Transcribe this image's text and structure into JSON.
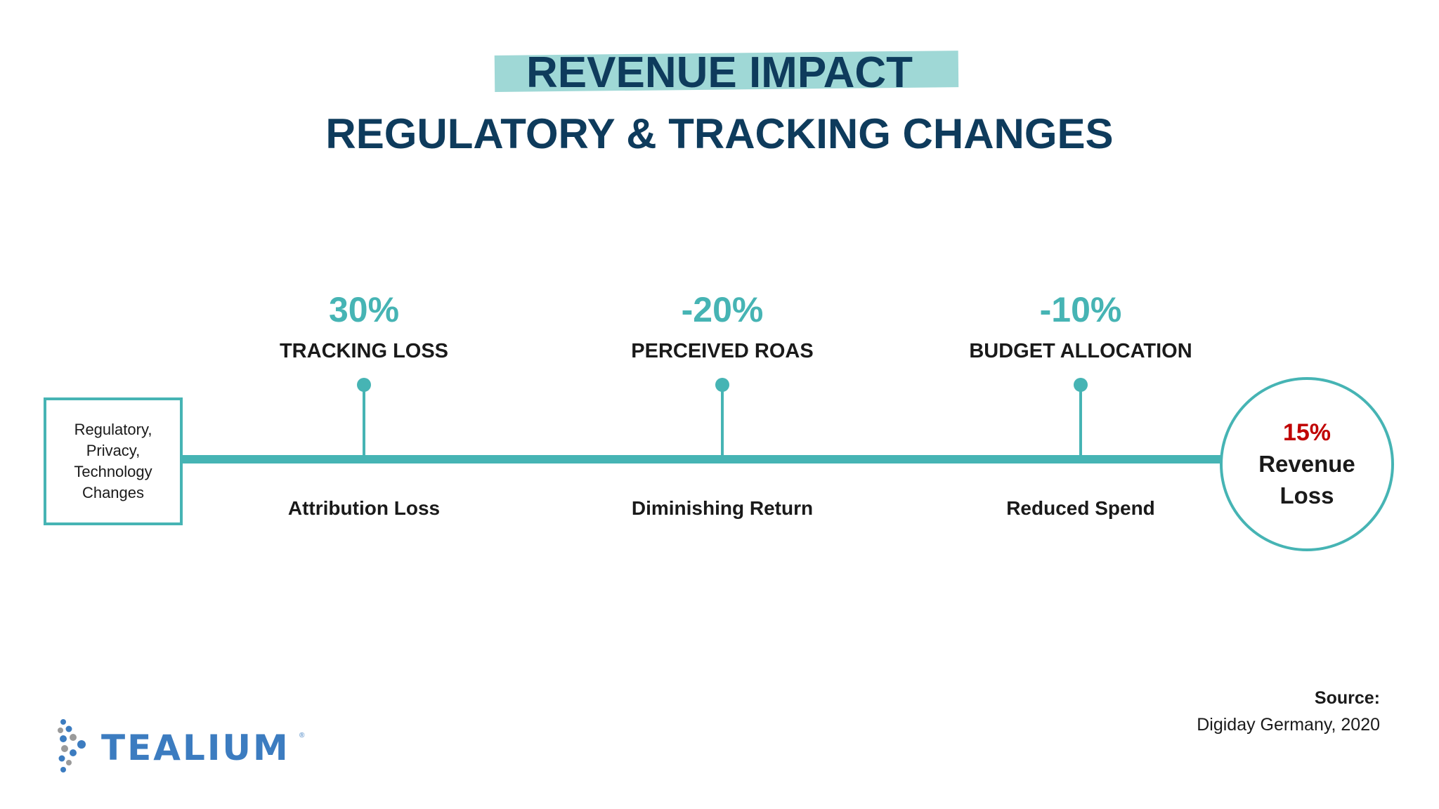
{
  "header": {
    "title": "REVENUE IMPACT",
    "subtitle": "REGULATORY & TRACKING CHANGES"
  },
  "diagram": {
    "start": {
      "lines": [
        "Regulatory,",
        "Privacy,",
        "Technology",
        "Changes"
      ]
    },
    "stages": [
      {
        "pct": "30%",
        "label": "TRACKING LOSS",
        "below": "Attribution Loss"
      },
      {
        "pct": "-20%",
        "label": "PERCEIVED ROAS",
        "below": "Diminishing Return"
      },
      {
        "pct": "-10%",
        "label": "BUDGET ALLOCATION",
        "below": "Reduced Spend"
      }
    ],
    "end": {
      "pct": "15%",
      "label_line1": "Revenue",
      "label_line2": "Loss"
    }
  },
  "source": {
    "title": "Source:",
    "text": "Digiday Germany, 2020"
  },
  "logo": {
    "text": "TEALIUM",
    "reg": "®"
  },
  "colors": {
    "accent": "#46b4b4",
    "title": "#0e3b5c",
    "highlight": "#9fd8d6",
    "loss": "#c00000",
    "logo": "#3c7cc0"
  }
}
